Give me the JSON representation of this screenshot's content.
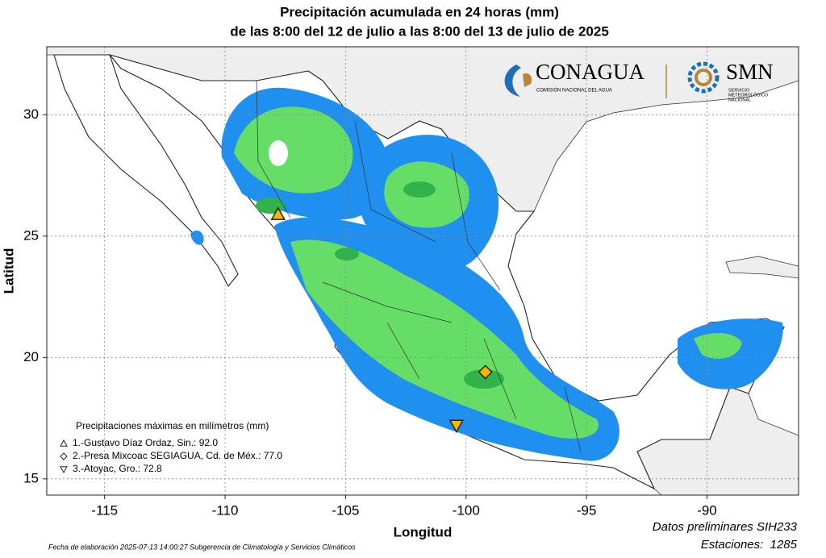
{
  "header": {
    "title": "Precipitación acumulada en 24 horas (mm)",
    "subtitle": "de las 8:00 del 12 de julio a las 8:00 del 13 de julio de 2025"
  },
  "logos": {
    "conagua": "CONAGUA",
    "conagua_sub": "COMISIÓN NACIONAL DEL AGUA",
    "smn": "SMN",
    "smn_sub": [
      "SERVICIO",
      "METEOROLÓGICO",
      "NACIONAL"
    ]
  },
  "map": {
    "xlabel": "Longitud",
    "ylabel": "Latitud",
    "xlim": [
      -117.4,
      -86.2
    ],
    "ylim": [
      14.33,
      32.8
    ],
    "xticks": [
      -115,
      -110,
      -105,
      -100,
      -95,
      -90
    ],
    "yticks": [
      15,
      20,
      25,
      30
    ],
    "grid": true
  },
  "legend": {
    "title": "Precipitaciones máximas en milímetros (mm)",
    "stations": [
      {
        "label": "1.-Gustavo Díaz Ordaz, Sin.: 92.0",
        "marker": "triangle-up",
        "lon": -107.8,
        "lat": 25.9
      },
      {
        "label": "2.-Presa Mixcoac SEGIAGUA, Cd. de Méx.: 77.0",
        "marker": "diamond",
        "lon": -99.2,
        "lat": 19.4
      },
      {
        "label": "3.-Atoyac, Gro.: 72.8",
        "marker": "triangle-down",
        "lon": -100.4,
        "lat": 17.2
      }
    ]
  },
  "footer": {
    "note": "Fecha de elaboración 2025-07-13 14:00:27 Subgerencia de Climatología y Servicios Climáticos",
    "data_note": "Datos preliminares SIH233",
    "stations_count": "Estaciones:  1285"
  }
}
